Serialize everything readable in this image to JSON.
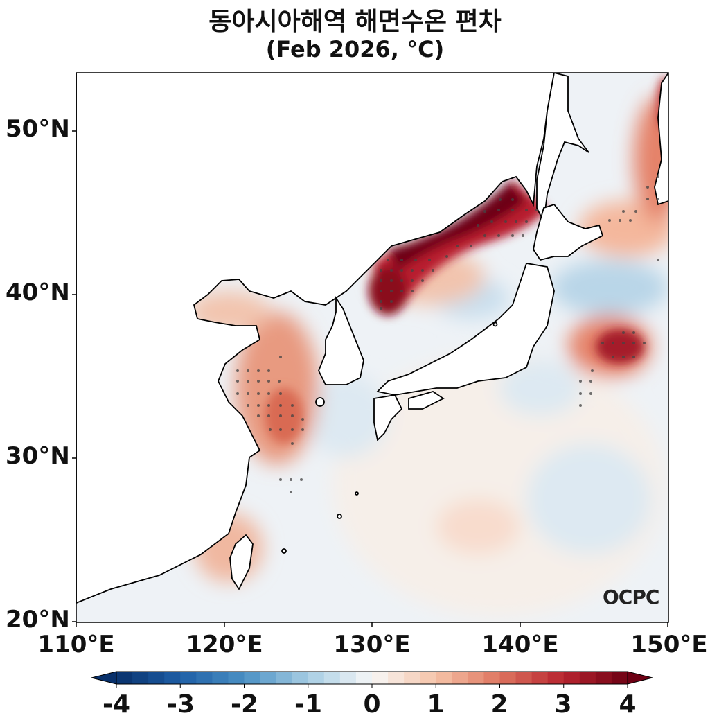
{
  "title": "동아시아해역 해면수온 편차",
  "subtitle": "(Feb 2026, °C)",
  "lat_labels": [
    "50°N",
    "40°N",
    "30°N",
    "20°N"
  ],
  "lon_labels": [
    "110°E",
    "120°E",
    "130°E",
    "140°E",
    "150°E"
  ],
  "colorbar": {
    "ticks": [
      "-4",
      "-3",
      "-2",
      "-1",
      "0",
      "1",
      "2",
      "3",
      "4"
    ],
    "colors": [
      "#08306b",
      "#1f5fa6",
      "#4a90c4",
      "#a6cde3",
      "#f7f7f7",
      "#f6c4a8",
      "#de7560",
      "#b7242f",
      "#6d0014"
    ]
  },
  "logo": "OCPC"
}
